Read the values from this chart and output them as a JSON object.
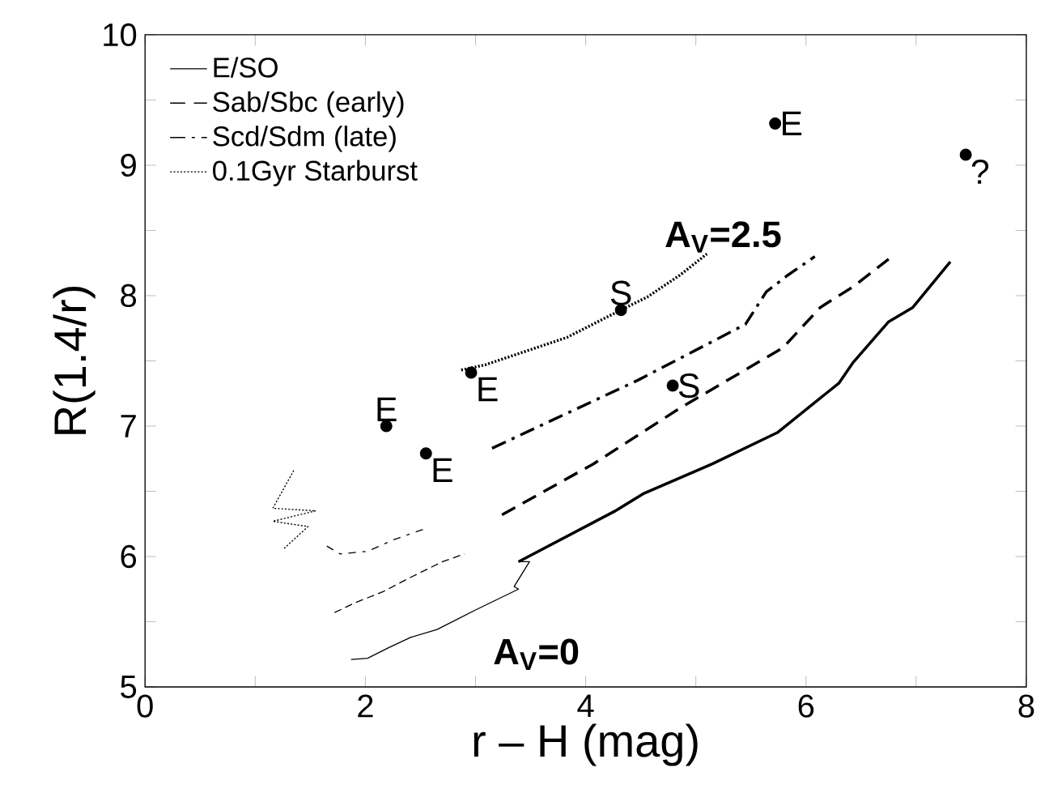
{
  "chart_data": {
    "type": "line",
    "xlabel": "r – H (mag)",
    "ylabel": "R(1.4/r)",
    "xlim": [
      0,
      8
    ],
    "ylim": [
      5,
      10
    ],
    "xticks": [
      0,
      {
        "value": 1,
        "label": null
      },
      2,
      {
        "value": 3,
        "label": null
      },
      4,
      {
        "value": 5,
        "label": null
      },
      6,
      {
        "value": 7,
        "label": null
      },
      8
    ],
    "yticks": [
      5,
      {
        "value": 5.5,
        "label": null
      },
      6,
      {
        "value": 6.5,
        "label": null
      },
      7,
      {
        "value": 7.5,
        "label": null
      },
      8,
      {
        "value": 8.5,
        "label": null
      },
      9,
      {
        "value": 9.5,
        "label": null
      },
      10
    ],
    "legend": "top left",
    "grid": false,
    "series": [
      {
        "name": "E/SO",
        "color": "#000000",
        "line_style": "solid",
        "x": [
          3.39,
          4.27,
          4.52,
          5.15,
          5.74,
          6.3,
          6.43,
          6.75,
          6.97,
          7.31
        ],
        "values": [
          5.96,
          6.35,
          6.48,
          6.71,
          6.95,
          7.33,
          7.49,
          7.8,
          7.91,
          8.26
        ]
      },
      {
        "name": "Sab/Sbc (early)",
        "color": "#000000",
        "line_style": "dashed",
        "x": [
          3.24,
          4.07,
          4.86,
          5.79,
          6.13,
          6.43,
          6.75
        ],
        "values": [
          6.32,
          6.71,
          7.14,
          7.6,
          7.91,
          8.07,
          8.28
        ]
      },
      {
        "name": "Scd/Sdm (late)",
        "color": "#000000",
        "line_style": "dash-dot",
        "x": [
          3.15,
          4.47,
          5.45,
          5.64,
          5.84,
          6.08
        ],
        "values": [
          6.83,
          7.35,
          7.78,
          8.03,
          8.16,
          8.3
        ]
      },
      {
        "name": "0.1Gyr Starburst",
        "color": "#000000",
        "line_style": "dotted",
        "x": [
          2.87,
          3.09,
          3.83,
          4.32,
          4.56,
          4.86,
          5.1
        ],
        "values": [
          7.43,
          7.47,
          7.68,
          7.89,
          7.99,
          8.16,
          8.32
        ]
      },
      {
        "color": "#000000",
        "line_style": "solid",
        "x": [
          1.87,
          2.02,
          2.21,
          2.41,
          2.65,
          3.0,
          3.39,
          3.35,
          3.49,
          3.39
        ],
        "values": [
          5.21,
          5.22,
          5.3,
          5.38,
          5.44,
          5.59,
          5.75,
          5.77,
          5.96,
          5.96
        ]
      },
      {
        "color": "#000000",
        "line_style": "dashed",
        "x": [
          1.72,
          1.92,
          2.16,
          2.41,
          2.7,
          2.9
        ],
        "values": [
          5.57,
          5.65,
          5.73,
          5.84,
          5.96,
          6.02
        ]
      },
      {
        "color": "#000000",
        "line_style": "dash-dot",
        "x": [
          1.65,
          1.77,
          2.02,
          2.26,
          2.53
        ],
        "values": [
          6.08,
          6.02,
          6.04,
          6.13,
          6.21
        ]
      },
      {
        "color": "#000000",
        "line_style": "dotted",
        "x": [
          1.35,
          1.16,
          1.55,
          1.16,
          1.48,
          1.26
        ],
        "values": [
          6.66,
          6.37,
          6.35,
          6.27,
          6.23,
          6.06
        ]
      },
      {
        "type": "scatter",
        "color": "#000000",
        "marker": "circle",
        "x": [
          2.19,
          2.55,
          2.96,
          4.32,
          4.79,
          5.72,
          7.45
        ],
        "values": [
          7.0,
          6.79,
          7.41,
          7.89,
          7.31,
          9.32,
          9.08
        ],
        "value_labels": [
          "E",
          "E",
          "E",
          "S",
          "S",
          "E",
          "?"
        ]
      }
    ],
    "annotations": [
      "A$_{V}$=2.5",
      "A$_{V}$=0"
    ]
  }
}
